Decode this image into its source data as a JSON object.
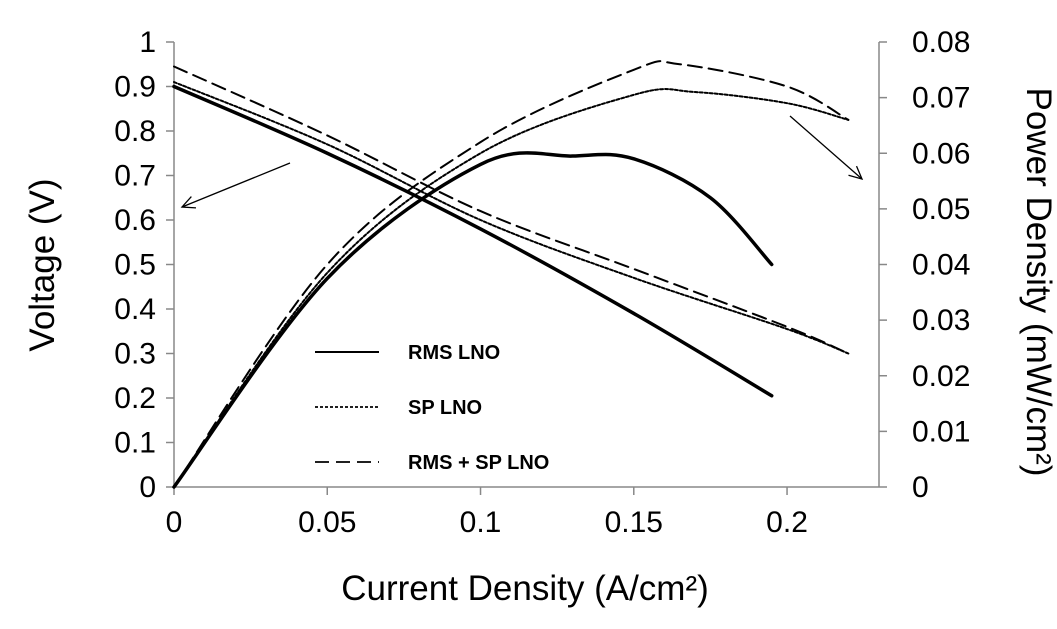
{
  "chart_data": {
    "type": "line",
    "xlabel": "Current Density (A/cm²)",
    "ylabel": "Voltage (V)",
    "y2label": "Power Density (mW/cm²)",
    "xlim": [
      0,
      0.23
    ],
    "ylim": [
      0,
      1
    ],
    "y2lim": [
      0,
      0.08
    ],
    "x_ticks": [
      "0",
      "0.05",
      "0.1",
      "0.15",
      "0.2"
    ],
    "y_ticks": [
      "0",
      "0.1",
      "0.2",
      "0.3",
      "0.4",
      "0.5",
      "0.6",
      "0.7",
      "0.8",
      "0.9",
      "1"
    ],
    "y2_ticks": [
      "0",
      "0.01",
      "0.02",
      "0.03",
      "0.04",
      "0.05",
      "0.06",
      "0.07",
      "0.08"
    ],
    "grid": false,
    "legend_position": "bottom-center",
    "series": [
      {
        "name": "RMS LNO",
        "dash": "solid",
        "voltage": {
          "x": [
            0,
            0.05,
            0.1,
            0.15,
            0.195
          ],
          "y": [
            0.9,
            0.75,
            0.58,
            0.39,
            0.205
          ]
        },
        "power": {
          "x": [
            0,
            0.05,
            0.1,
            0.13,
            0.15,
            0.175,
            0.195
          ],
          "y": [
            0,
            0.0375,
            0.058,
            0.0595,
            0.059,
            0.052,
            0.04
          ]
        }
      },
      {
        "name": "SP LNO",
        "dash": "dotted",
        "voltage": {
          "x": [
            0,
            0.05,
            0.1,
            0.15,
            0.2,
            0.22
          ],
          "y": [
            0.91,
            0.77,
            0.6,
            0.47,
            0.355,
            0.3
          ]
        },
        "power": {
          "x": [
            0,
            0.05,
            0.1,
            0.15,
            0.17,
            0.2,
            0.22
          ],
          "y": [
            0,
            0.0385,
            0.06,
            0.0705,
            0.071,
            0.069,
            0.066
          ]
        }
      },
      {
        "name": "RMS + SP LNO",
        "dash": "dashed",
        "voltage": {
          "x": [
            0,
            0.05,
            0.1,
            0.15,
            0.2,
            0.22
          ],
          "y": [
            0.945,
            0.79,
            0.62,
            0.49,
            0.36,
            0.3
          ]
        },
        "power": {
          "x": [
            0,
            0.05,
            0.1,
            0.15,
            0.165,
            0.2,
            0.22
          ],
          "y": [
            0,
            0.04,
            0.062,
            0.075,
            0.076,
            0.072,
            0.066
          ]
        }
      }
    ],
    "annotations": [
      {
        "type": "arrow",
        "direction": "left",
        "axis": "left",
        "meaning": "voltage curves"
      },
      {
        "type": "arrow",
        "direction": "right",
        "axis": "right",
        "meaning": "power density curves"
      }
    ]
  }
}
